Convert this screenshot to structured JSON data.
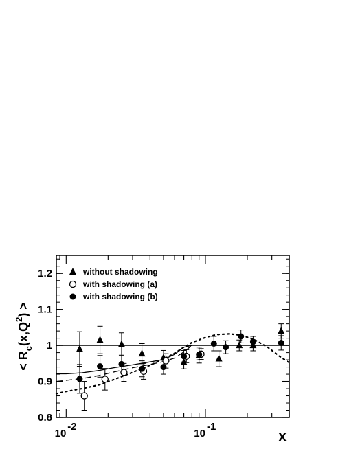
{
  "chart_data": {
    "type": "scatter",
    "title": "",
    "xlabel": "x",
    "ylabel_parts": {
      "pre": "< R",
      "sub": "c",
      "mid": "(x,Q",
      "sup": "2",
      "post": ") >"
    },
    "xscale": "log",
    "xlim": [
      0.0085,
      0.4
    ],
    "ylim": [
      0.8,
      1.25
    ],
    "y_ticks": [
      {
        "value": 0.8,
        "label": "0.8"
      },
      {
        "value": 0.9,
        "label": "0.9"
      },
      {
        "value": 1.0,
        "label": "1"
      },
      {
        "value": 1.1,
        "label": "1.1"
      },
      {
        "value": 1.2,
        "label": "1.2"
      }
    ],
    "x_ticks": [
      {
        "value": 0.01,
        "base": "10",
        "exp": "-2"
      },
      {
        "value": 0.1,
        "base": "10",
        "exp": "-1"
      }
    ],
    "legend_position": "top-left",
    "series": [
      {
        "name": "without shadowing",
        "marker": "triangle-filled",
        "points": [
          {
            "x": 0.0125,
            "y": 0.99,
            "err": 0.048
          },
          {
            "x": 0.0175,
            "y": 1.015,
            "err": 0.038
          },
          {
            "x": 0.025,
            "y": 1.003,
            "err": 0.032
          },
          {
            "x": 0.035,
            "y": 0.977,
            "err": 0.028
          },
          {
            "x": 0.05,
            "y": 0.966,
            "err": 0.02
          },
          {
            "x": 0.07,
            "y": 0.953,
            "err": 0.018
          },
          {
            "x": 0.09,
            "y": 0.973,
            "err": 0.022
          },
          {
            "x": 0.125,
            "y": 0.963,
            "err": 0.022
          },
          {
            "x": 0.175,
            "y": 1.0,
            "err": 0.015
          },
          {
            "x": 0.22,
            "y": 1.0,
            "err": 0.015
          },
          {
            "x": 0.35,
            "y": 1.04,
            "err": 0.02
          }
        ]
      },
      {
        "name": "with shadowing (a)",
        "marker": "circle-open",
        "points": [
          {
            "x": 0.0135,
            "y": 0.86,
            "err": 0.04
          },
          {
            "x": 0.019,
            "y": 0.906,
            "err": 0.03
          },
          {
            "x": 0.026,
            "y": 0.925,
            "err": 0.025
          },
          {
            "x": 0.036,
            "y": 0.928,
            "err": 0.022
          },
          {
            "x": 0.052,
            "y": 0.957,
            "err": 0.02
          },
          {
            "x": 0.073,
            "y": 0.97,
            "err": 0.018
          },
          {
            "x": 0.093,
            "y": 0.976,
            "err": 0.015
          }
        ]
      },
      {
        "name": "with shadowing (b)",
        "marker": "circle-filled",
        "points": [
          {
            "x": 0.0125,
            "y": 0.907,
            "err": 0.04
          },
          {
            "x": 0.0175,
            "y": 0.942,
            "err": 0.03
          },
          {
            "x": 0.025,
            "y": 0.948,
            "err": 0.025
          },
          {
            "x": 0.035,
            "y": 0.935,
            "err": 0.022
          },
          {
            "x": 0.05,
            "y": 0.94,
            "err": 0.02
          },
          {
            "x": 0.07,
            "y": 0.97,
            "err": 0.016
          },
          {
            "x": 0.09,
            "y": 0.975,
            "err": 0.015
          },
          {
            "x": 0.115,
            "y": 1.005,
            "err": 0.02
          },
          {
            "x": 0.14,
            "y": 0.995,
            "err": 0.018
          },
          {
            "x": 0.18,
            "y": 1.025,
            "err": 0.018
          },
          {
            "x": 0.22,
            "y": 1.01,
            "err": 0.015
          },
          {
            "x": 0.35,
            "y": 1.007,
            "err": 0.02
          }
        ]
      }
    ],
    "curves": [
      {
        "style": "solid",
        "points": [
          [
            0.0085,
            1.0
          ],
          [
            0.4,
            1.0
          ]
        ]
      },
      {
        "style": "solid",
        "points": [
          [
            0.0085,
            0.921
          ],
          [
            0.01,
            0.921
          ],
          [
            0.013,
            0.924
          ],
          [
            0.017,
            0.93
          ],
          [
            0.022,
            0.938
          ],
          [
            0.03,
            0.946
          ],
          [
            0.04,
            0.954
          ],
          [
            0.05,
            0.961
          ],
          [
            0.06,
            0.975
          ],
          [
            0.07,
            0.995
          ],
          [
            0.08,
            1.0
          ]
        ]
      },
      {
        "style": "dashed",
        "points": [
          [
            0.0085,
            0.9
          ],
          [
            0.01,
            0.903
          ],
          [
            0.013,
            0.908
          ],
          [
            0.017,
            0.916
          ],
          [
            0.022,
            0.926
          ],
          [
            0.03,
            0.938
          ],
          [
            0.04,
            0.947
          ],
          [
            0.05,
            0.955
          ],
          [
            0.06,
            0.965
          ],
          [
            0.07,
            0.982
          ],
          [
            0.08,
            1.0
          ]
        ]
      },
      {
        "style": "dotted",
        "points": [
          [
            0.0085,
            0.866
          ],
          [
            0.01,
            0.872
          ],
          [
            0.013,
            0.88
          ],
          [
            0.017,
            0.89
          ],
          [
            0.022,
            0.905
          ],
          [
            0.03,
            0.925
          ],
          [
            0.04,
            0.945
          ],
          [
            0.05,
            0.962
          ],
          [
            0.06,
            0.978
          ],
          [
            0.07,
            0.995
          ],
          [
            0.08,
            1.008
          ],
          [
            0.1,
            1.022
          ],
          [
            0.12,
            1.03
          ],
          [
            0.15,
            1.032
          ],
          [
            0.18,
            1.028
          ],
          [
            0.22,
            1.018
          ],
          [
            0.28,
            0.995
          ],
          [
            0.34,
            0.97
          ],
          [
            0.4,
            0.952
          ]
        ]
      }
    ]
  }
}
